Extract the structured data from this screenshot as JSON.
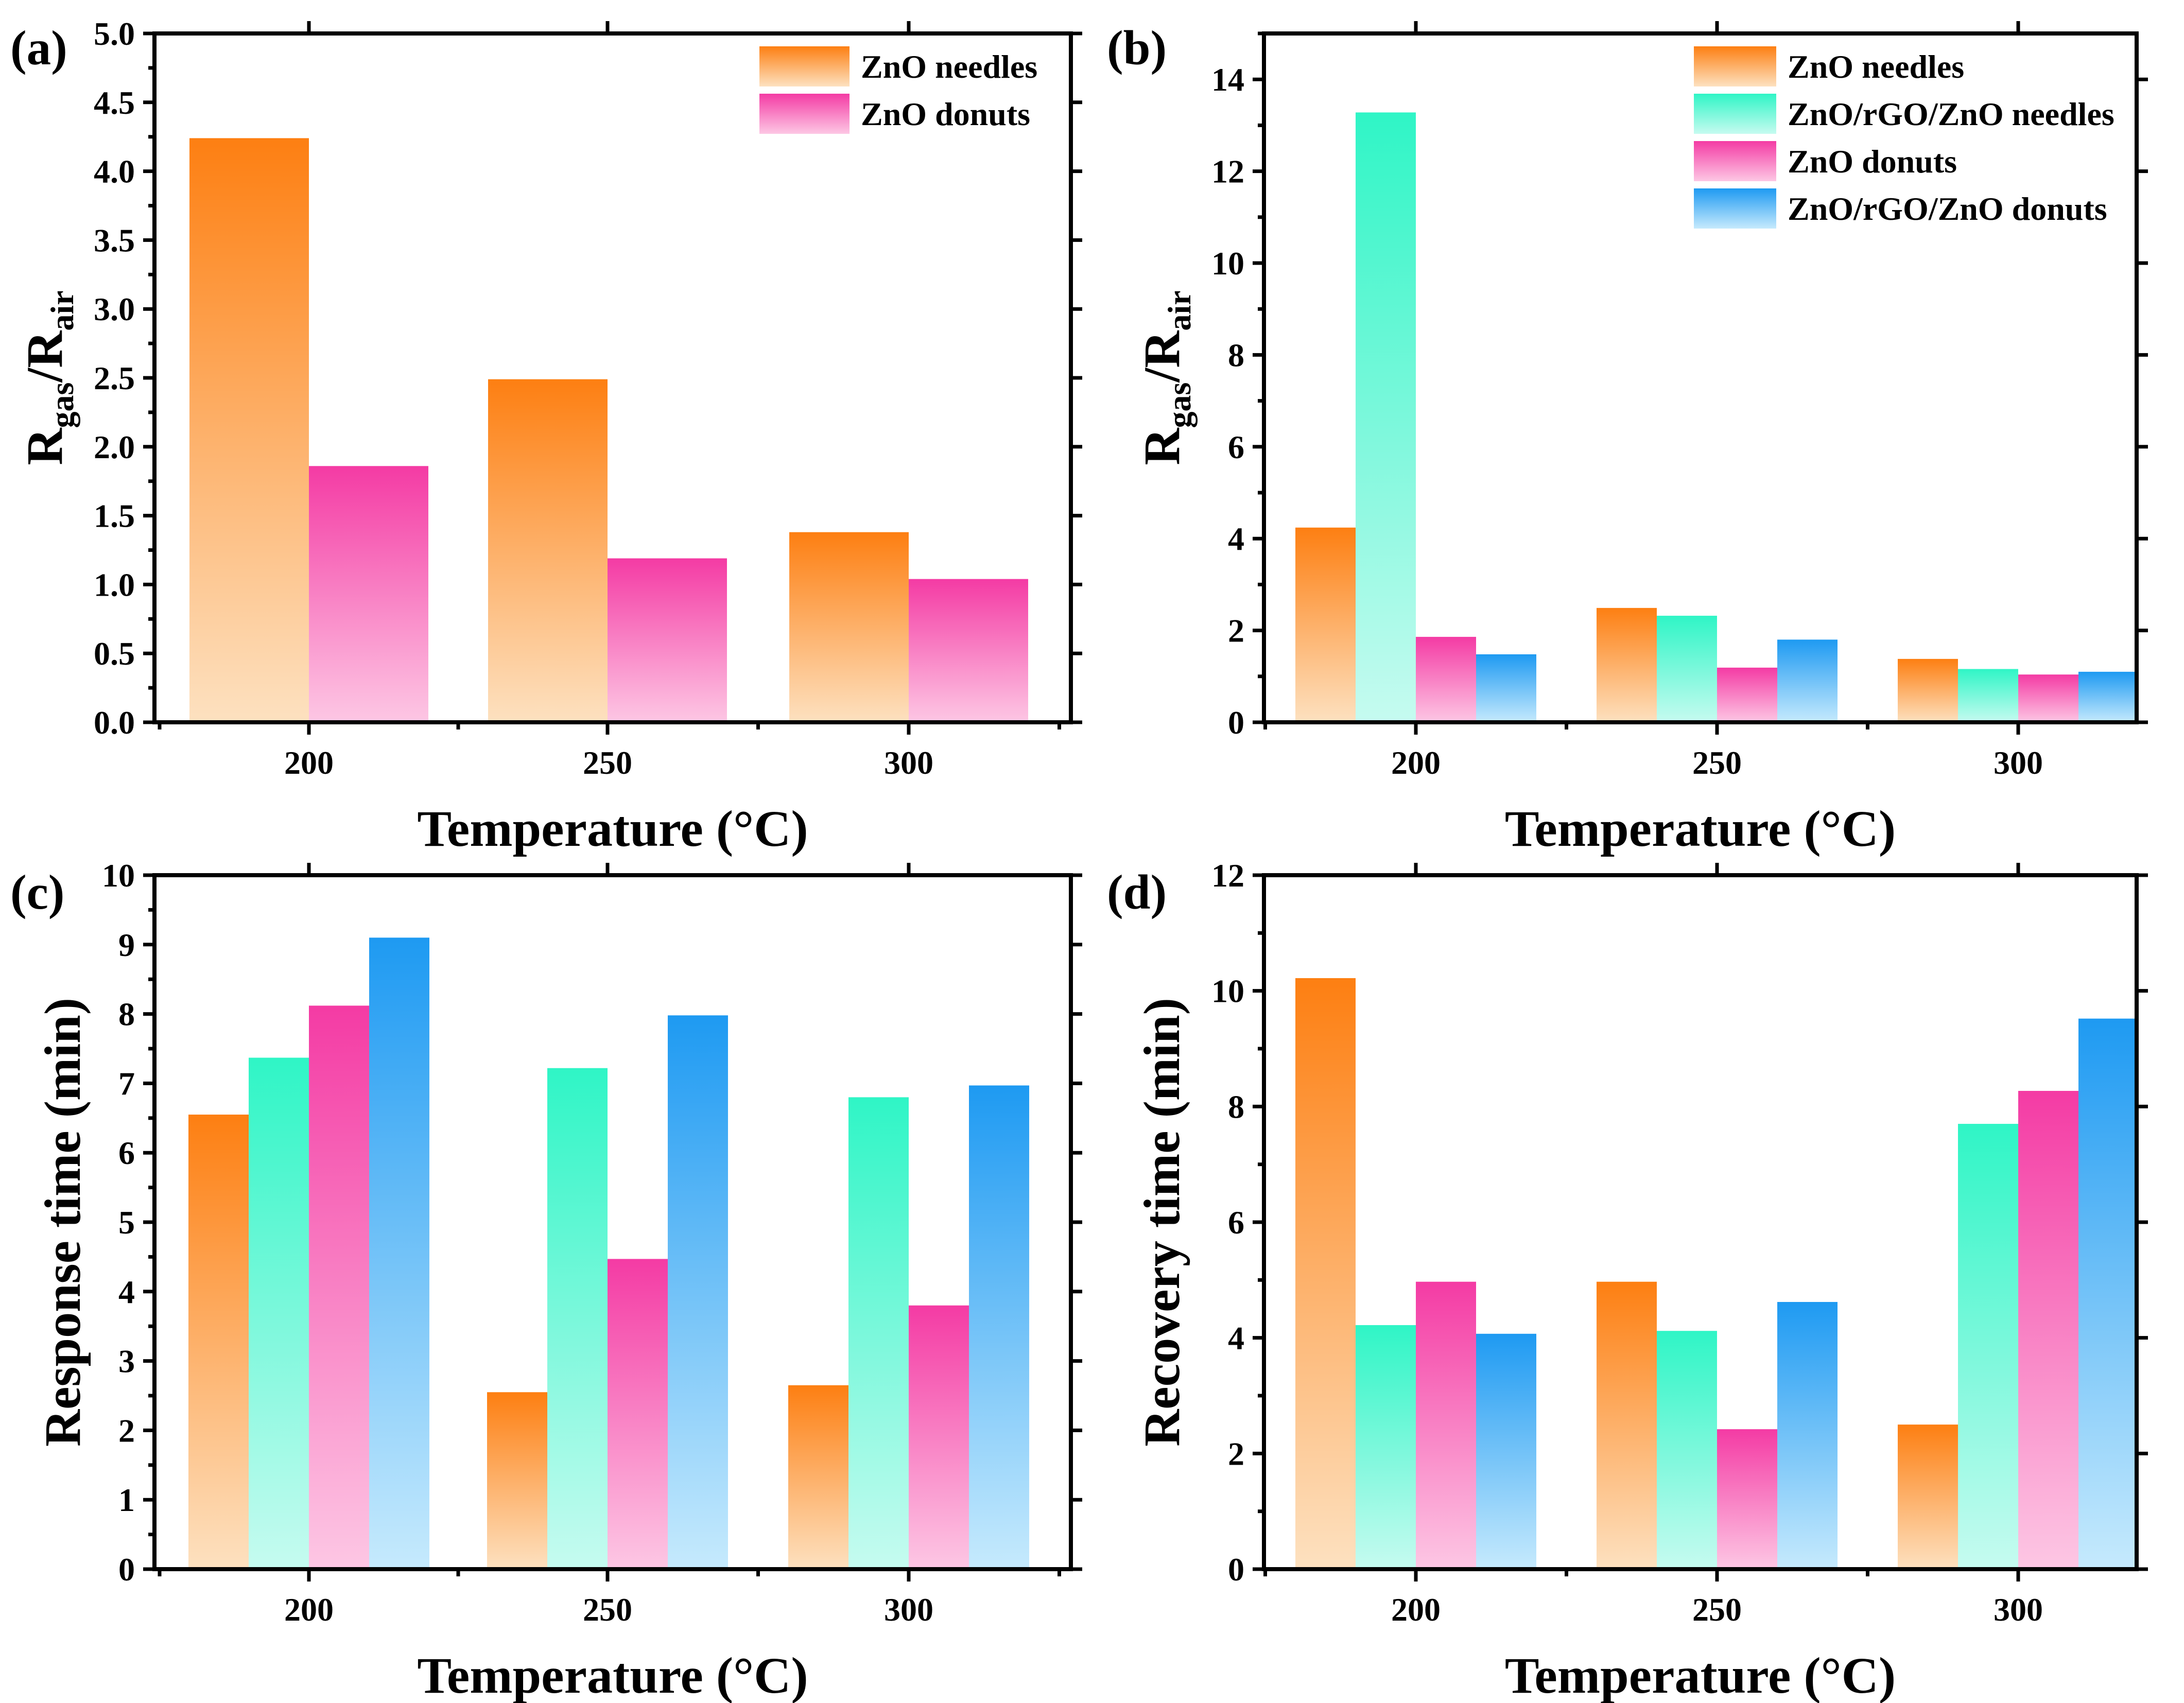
{
  "colors": {
    "ZnO needles": [
      "#fd7f12",
      "#fde1c0"
    ],
    "ZnO/rGO/ZnO needles": [
      "#2ff5c6",
      "#c6fbf0"
    ],
    "ZnO donuts": [
      "#f43ba4",
      "#fdc7e4"
    ],
    "ZnO/rGO/ZnO donuts": [
      "#1e9af2",
      "#c6eafd"
    ]
  },
  "chart_data": [
    {
      "panel_label": "(a)",
      "type": "bar",
      "xlabel": "Temperature (°C)",
      "ylabel": {
        "main": "R",
        "sub1": "gas",
        "mid": "/R",
        "sub2": "air"
      },
      "categories": [
        "200",
        "250",
        "300"
      ],
      "ylim": [
        0,
        5.0
      ],
      "yticks": [
        "0.0",
        "0.5",
        "1.0",
        "1.5",
        "2.0",
        "2.5",
        "3.0",
        "3.5",
        "4.0",
        "4.5",
        "5.0"
      ],
      "legend_position": "top-right",
      "series": [
        {
          "name": "ZnO needles",
          "values": [
            4.24,
            2.49,
            1.38
          ]
        },
        {
          "name": "ZnO donuts",
          "values": [
            1.86,
            1.19,
            1.04
          ]
        }
      ]
    },
    {
      "panel_label": "(b)",
      "type": "bar",
      "xlabel": "Temperature (°C)",
      "ylabel": {
        "main": "R",
        "sub1": "gas",
        "mid": "/R",
        "sub2": "air"
      },
      "categories": [
        "200",
        "250",
        "300"
      ],
      "ylim": [
        0,
        15
      ],
      "yticks": [
        "0",
        "2",
        "4",
        "6",
        "8",
        "10",
        "12",
        "14"
      ],
      "legend_position": "top-right",
      "series": [
        {
          "name": "ZnO needles",
          "values": [
            4.24,
            2.49,
            1.38
          ]
        },
        {
          "name": "ZnO/rGO/ZnO needles",
          "values": [
            13.28,
            2.32,
            1.16
          ]
        },
        {
          "name": "ZnO donuts",
          "values": [
            1.86,
            1.19,
            1.04
          ]
        },
        {
          "name": "ZnO/rGO/ZnO donuts",
          "values": [
            1.48,
            1.8,
            1.1
          ]
        }
      ]
    },
    {
      "panel_label": "(c)",
      "type": "bar",
      "xlabel": "Temperature (°C)",
      "ylabel": "Response time (min)",
      "categories": [
        "200",
        "250",
        "300"
      ],
      "ylim": [
        0,
        10
      ],
      "yticks": [
        "0",
        "1",
        "2",
        "3",
        "4",
        "5",
        "6",
        "7",
        "8",
        "9",
        "10"
      ],
      "series": [
        {
          "name": "ZnO needles",
          "values": [
            6.55,
            2.55,
            2.65
          ]
        },
        {
          "name": "ZnO/rGO/ZnO needles",
          "values": [
            7.37,
            7.22,
            6.8
          ]
        },
        {
          "name": "ZnO donuts",
          "values": [
            8.12,
            4.47,
            3.8
          ]
        },
        {
          "name": "ZnO/rGO/ZnO donuts",
          "values": [
            9.1,
            7.98,
            6.97
          ]
        }
      ]
    },
    {
      "panel_label": "(d)",
      "type": "bar",
      "xlabel": "Temperature (°C)",
      "ylabel": "Recovery time (min)",
      "categories": [
        "200",
        "250",
        "300"
      ],
      "ylim": [
        0,
        12
      ],
      "yticks": [
        "0",
        "2",
        "4",
        "6",
        "8",
        "10",
        "12"
      ],
      "series": [
        {
          "name": "ZnO needles",
          "values": [
            10.22,
            4.97,
            2.5
          ]
        },
        {
          "name": "ZnO/rGO/ZnO needles",
          "values": [
            4.22,
            4.12,
            7.7
          ]
        },
        {
          "name": "ZnO donuts",
          "values": [
            4.97,
            2.42,
            8.27
          ]
        },
        {
          "name": "ZnO/rGO/ZnO donuts",
          "values": [
            4.07,
            4.62,
            9.52
          ]
        }
      ]
    }
  ]
}
